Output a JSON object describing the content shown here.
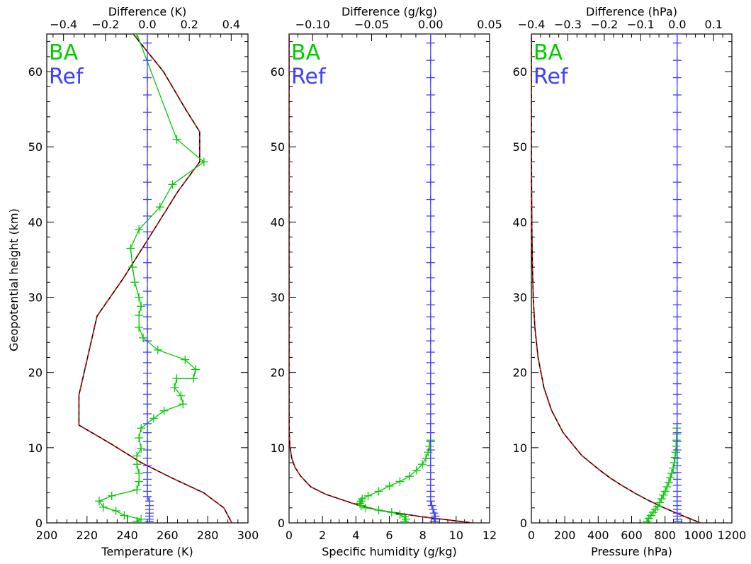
{
  "figure": {
    "ylabel": "Geopotential height (km)",
    "colors": {
      "BA": "#00cc00",
      "Ref": "#4040ff",
      "truth": "#000000",
      "truth_overlay": "#ff0000",
      "frame": "#000000"
    }
  },
  "chart_data": [
    {
      "type": "line",
      "xlabel": "Temperature (K)",
      "top_xlabel": "Difference (K)",
      "ylabel": "Geopotential height (km)",
      "xlim": [
        200,
        300
      ],
      "xticks": [
        200,
        220,
        240,
        260,
        280,
        300
      ],
      "top_xlim": [
        -0.48,
        0.48
      ],
      "top_xticks": [
        -0.4,
        -0.2,
        0.0,
        0.2,
        0.4
      ],
      "top_xtick_labels": [
        "−0.4",
        "−0.2",
        "0.0",
        "0.2",
        "0.4"
      ],
      "ylim": [
        0,
        65
      ],
      "yticks": [
        0,
        10,
        20,
        30,
        40,
        50,
        60
      ],
      "legend": [
        "BA",
        "Ref"
      ],
      "legend_position": "top-left",
      "profile": {
        "name": "",
        "axis": "bottom",
        "x": [
          292,
          288,
          278,
          262,
          247,
          232,
          216,
          216,
          225,
          238,
          251,
          265,
          276,
          276,
          269,
          258,
          243
        ],
        "y": [
          0,
          2,
          4,
          6,
          8,
          10.5,
          13,
          17,
          27.5,
          32.5,
          38,
          44,
          48,
          52,
          55,
          60,
          65
        ]
      },
      "series": [
        {
          "name": "BA",
          "axis": "top",
          "x": [
            -0.05,
            -0.03,
            -0.11,
            -0.15,
            -0.21,
            -0.23,
            -0.17,
            -0.05,
            -0.04,
            -0.04,
            -0.05,
            -0.05,
            -0.03,
            -0.04,
            -0.03,
            0.03,
            0.08,
            0.17,
            0.16,
            0.13,
            0.14,
            0.22,
            0.23,
            0.18,
            0.05,
            -0.02,
            -0.04,
            -0.04,
            -0.03,
            -0.04,
            -0.06,
            -0.07,
            -0.08,
            -0.04,
            0.06,
            0.12,
            0.27,
            0.14,
            -0.05
          ],
          "y": [
            0.2,
            0.5,
            1.0,
            1.6,
            2.1,
            2.9,
            3.6,
            4.4,
            5.5,
            6.6,
            7.8,
            8.9,
            9.9,
            11.3,
            12.6,
            13.9,
            14.9,
            15.8,
            16.9,
            18.0,
            19.2,
            19.2,
            20.4,
            21.7,
            23.0,
            24.6,
            26.0,
            27.6,
            28.8,
            30.0,
            32.0,
            34.0,
            36.5,
            39.0,
            42.0,
            45.0,
            48.0,
            51.0,
            65.0
          ]
        },
        {
          "name": "Ref",
          "axis": "top",
          "x": [
            0.01,
            0.01,
            0.01,
            0.01,
            0.01,
            0.01,
            0.01,
            0.0,
            0.0,
            0.0,
            0.0,
            0.0,
            0.0,
            0.0,
            0.0,
            0.0,
            0.0,
            0.0,
            0.0,
            0.0,
            0.0,
            0.0,
            0.0,
            0.0,
            0.0,
            0.0,
            0.0,
            0.0,
            0.0,
            0.0,
            0.0,
            0.0,
            0.0,
            0.0,
            0.0,
            0.0,
            0.0,
            0.0,
            0.0,
            0.0,
            0.0,
            0.0,
            0.0,
            0.0,
            0.0,
            0.0
          ],
          "y": [
            0.2,
            0.5,
            0.9,
            1.3,
            1.8,
            2.3,
            2.9,
            3.5,
            4.2,
            5.0,
            5.8,
            6.7,
            7.6,
            8.6,
            9.7,
            10.8,
            12.0,
            13.2,
            14.5,
            15.8,
            17.1,
            18.5,
            19.9,
            21.3,
            22.7,
            24.2,
            25.8,
            27.4,
            29.0,
            30.8,
            32.6,
            34.6,
            36.6,
            38.7,
            40.8,
            43.0,
            45.3,
            47.6,
            50.0,
            52.3,
            54.6,
            56.9,
            59.2,
            61.5,
            63.8,
            65.0
          ]
        }
      ]
    },
    {
      "type": "line",
      "xlabel": "Specific humidity (g/kg)",
      "top_xlabel": "Difference (g/kg)",
      "xlim": [
        0,
        12
      ],
      "xticks": [
        0,
        2,
        4,
        6,
        8,
        10,
        12
      ],
      "top_xlim": [
        -0.12,
        0.05
      ],
      "top_xticks": [
        -0.1,
        -0.05,
        0.0,
        0.05
      ],
      "top_xtick_labels": [
        "−0.10",
        "−0.05",
        "0.00",
        "0.05"
      ],
      "ylim": [
        0,
        65
      ],
      "yticks": [
        0,
        10,
        20,
        30,
        40,
        50,
        60
      ],
      "legend": [
        "BA",
        "Ref"
      ],
      "legend_position": "top-left",
      "profile": {
        "name": "",
        "axis": "bottom",
        "x": [
          11.0,
          8.0,
          5.3,
          3.8,
          2.2,
          1.3,
          0.7,
          0.35,
          0.15,
          0.05,
          0.01,
          0.0,
          0.0
        ],
        "y": [
          0.0,
          0.8,
          1.7,
          2.6,
          3.8,
          4.8,
          6.2,
          7.4,
          8.7,
          10.2,
          12.0,
          15.0,
          65.0
        ]
      },
      "series": [
        {
          "name": "BA",
          "axis": "top",
          "x": [
            -0.022,
            -0.021,
            -0.022,
            -0.026,
            -0.033,
            -0.044,
            -0.055,
            -0.059,
            -0.06,
            -0.059,
            -0.058,
            -0.053,
            -0.044,
            -0.035,
            -0.026,
            -0.018,
            -0.012,
            -0.007,
            -0.004,
            -0.002,
            -0.001,
            0.0
          ],
          "y": [
            0.2,
            0.5,
            0.8,
            1.1,
            1.4,
            1.7,
            2.0,
            2.3,
            2.6,
            2.9,
            3.2,
            3.6,
            4.2,
            4.9,
            5.5,
            6.2,
            7.0,
            7.8,
            8.6,
            9.4,
            10.2,
            11.0
          ]
        },
        {
          "name": "Ref",
          "axis": "top",
          "x": [
            0.003,
            0.004,
            0.004,
            0.003,
            0.002,
            0.001,
            0.0,
            0.0,
            0.0,
            0.0,
            0.0,
            0.0,
            0.0,
            0.0,
            0.0,
            0.0,
            0.0,
            0.0,
            0.0,
            0.0,
            0.0,
            0.0,
            0.0,
            0.0,
            0.0,
            0.0,
            0.0,
            0.0,
            0.0,
            0.0,
            0.0,
            0.0,
            0.0,
            0.0,
            0.0,
            0.0,
            0.0,
            0.0,
            0.0,
            0.0,
            0.0,
            0.0,
            0.0,
            0.0,
            0.0,
            0.0
          ],
          "y": [
            0.2,
            0.5,
            0.9,
            1.3,
            1.8,
            2.3,
            2.9,
            3.5,
            4.2,
            5.0,
            5.8,
            6.7,
            7.6,
            8.6,
            9.7,
            10.8,
            12.0,
            13.2,
            14.5,
            15.8,
            17.1,
            18.5,
            19.9,
            21.3,
            22.7,
            24.2,
            25.8,
            27.4,
            29.0,
            30.8,
            32.6,
            34.6,
            36.6,
            38.7,
            40.8,
            43.0,
            45.3,
            47.6,
            50.0,
            52.3,
            54.6,
            56.9,
            59.2,
            61.5,
            63.8,
            65.0
          ]
        }
      ]
    },
    {
      "type": "line",
      "xlabel": "Pressure (hPa)",
      "top_xlabel": "Difference (hPa)",
      "xlim": [
        0,
        1200
      ],
      "xticks": [
        0,
        200,
        400,
        600,
        800,
        1000,
        1200
      ],
      "top_xlim": [
        -0.4,
        0.15
      ],
      "top_xticks": [
        -0.4,
        -0.3,
        -0.2,
        -0.1,
        0.0,
        0.1
      ],
      "top_xtick_labels": [
        "−0.4",
        "−0.3",
        "−0.2",
        "−0.1",
        "0.0",
        "0.1"
      ],
      "ylim": [
        0,
        65
      ],
      "yticks": [
        0,
        10,
        20,
        30,
        40,
        50,
        60
      ],
      "legend": [
        "BA",
        "Ref"
      ],
      "legend_position": "top-left",
      "profile": {
        "name": "",
        "axis": "bottom",
        "x": [
          1013,
          900,
          795,
          700,
          616,
          540,
          470,
          410,
          300,
          190,
          120,
          75,
          40,
          21,
          11,
          5.5,
          2.8,
          1.4,
          0.7,
          0.3,
          0.1
        ],
        "y": [
          0,
          1,
          2,
          3,
          4,
          5,
          6,
          7,
          9,
          12,
          15,
          18,
          22,
          26,
          30,
          35,
          40,
          45,
          50,
          55,
          65
        ]
      },
      "series": [
        {
          "name": "BA",
          "axis": "top",
          "x": [
            -0.083,
            -0.078,
            -0.072,
            -0.066,
            -0.06,
            -0.054,
            -0.048,
            -0.043,
            -0.038,
            -0.033,
            -0.028,
            -0.023,
            -0.019,
            -0.015,
            -0.011,
            -0.008,
            -0.006,
            -0.004,
            -0.003,
            -0.002,
            -0.0015,
            -0.001
          ],
          "y": [
            0.2,
            0.6,
            1.0,
            1.4,
            1.8,
            2.2,
            2.7,
            3.2,
            3.7,
            4.2,
            4.8,
            5.4,
            6.0,
            6.6,
            7.3,
            8.0,
            8.7,
            9.4,
            10.2,
            11.0,
            11.8,
            12.6
          ]
        },
        {
          "name": "Ref",
          "axis": "top",
          "x": [
            0.0,
            0.0,
            0.0,
            0.0,
            0.0,
            0.0,
            0.0,
            0.0,
            0.0,
            0.0,
            0.0,
            0.0,
            0.0,
            0.0,
            0.0,
            0.0,
            0.0,
            0.0,
            0.0,
            0.0,
            0.0,
            0.0,
            0.0,
            0.0,
            0.0,
            0.0,
            0.0,
            0.0,
            0.0,
            0.0,
            0.0,
            0.0,
            0.0,
            0.0,
            0.0,
            0.0,
            0.0,
            0.0,
            0.0,
            0.0,
            0.0,
            0.0,
            0.0,
            0.0,
            0.0,
            0.0
          ],
          "y": [
            0.2,
            0.5,
            0.9,
            1.3,
            1.8,
            2.3,
            2.9,
            3.5,
            4.2,
            5.0,
            5.8,
            6.7,
            7.6,
            8.6,
            9.7,
            10.8,
            12.0,
            13.2,
            14.5,
            15.8,
            17.1,
            18.5,
            19.9,
            21.3,
            22.7,
            24.2,
            25.8,
            27.4,
            29.0,
            30.8,
            32.6,
            34.6,
            36.6,
            38.7,
            40.8,
            43.0,
            45.3,
            47.6,
            50.0,
            52.3,
            54.6,
            56.9,
            59.2,
            61.5,
            63.8,
            65.0
          ]
        }
      ]
    }
  ]
}
